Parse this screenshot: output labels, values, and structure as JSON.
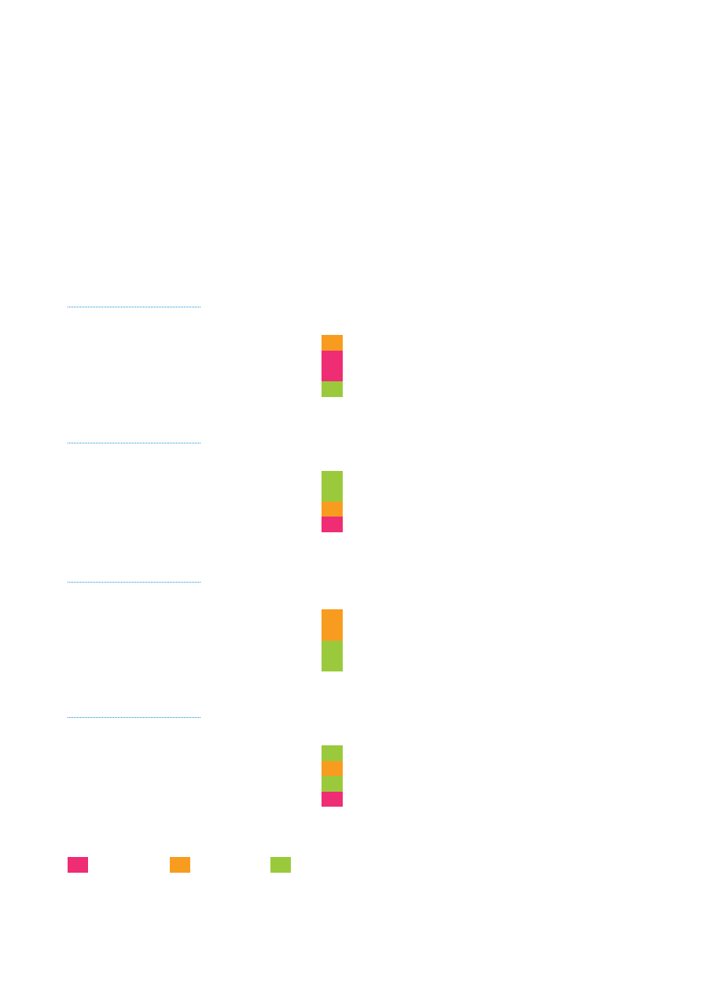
{
  "palette": {
    "pink": "#ee2d74",
    "orange": "#f89c1f",
    "green": "#9aca3c",
    "rule": "#1c8fd4"
  },
  "sections": [
    {
      "id": "section-1",
      "blocks": [
        "orange",
        "pink",
        "pink",
        "green"
      ]
    },
    {
      "id": "section-2",
      "blocks": [
        "green",
        "green",
        "orange",
        "pink"
      ]
    },
    {
      "id": "section-3",
      "blocks": [
        "orange",
        "orange",
        "green",
        "green"
      ]
    },
    {
      "id": "section-4",
      "blocks": [
        "green",
        "orange",
        "green",
        "pink"
      ]
    }
  ],
  "legend": [
    {
      "color": "pink"
    },
    {
      "color": "orange"
    },
    {
      "color": "green"
    }
  ]
}
